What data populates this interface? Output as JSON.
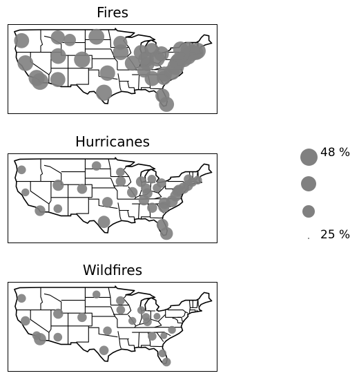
{
  "panels": [
    {
      "title": "Fires",
      "points": [
        {
          "lon": -122.6,
          "lat": 45.6,
          "v": 0.42
        },
        {
          "lon": -112.0,
          "lat": 46.6,
          "v": 0.4
        },
        {
          "lon": -108.5,
          "lat": 45.8,
          "v": 0.36
        },
        {
          "lon": -100.7,
          "lat": 46.8,
          "v": 0.44
        },
        {
          "lon": -111.9,
          "lat": 40.8,
          "v": 0.44
        },
        {
          "lon": -104.9,
          "lat": 39.7,
          "v": 0.45
        },
        {
          "lon": -97.5,
          "lat": 35.5,
          "v": 0.43
        },
        {
          "lon": -121.5,
          "lat": 38.6,
          "v": 0.44
        },
        {
          "lon": -117.2,
          "lat": 32.9,
          "v": 0.47
        },
        {
          "lon": -118.2,
          "lat": 34.0,
          "v": 0.45
        },
        {
          "lon": -112.0,
          "lat": 33.5,
          "v": 0.42
        },
        {
          "lon": -98.5,
          "lat": 29.4,
          "v": 0.45
        },
        {
          "lon": -93.7,
          "lat": 44.9,
          "v": 0.4
        },
        {
          "lon": -93.6,
          "lat": 42.0,
          "v": 0.44
        },
        {
          "lon": -90.2,
          "lat": 38.6,
          "v": 0.42
        },
        {
          "lon": -86.2,
          "lat": 39.8,
          "v": 0.44
        },
        {
          "lon": -87.6,
          "lat": 41.9,
          "v": 0.42
        },
        {
          "lon": -83.0,
          "lat": 40.0,
          "v": 0.44
        },
        {
          "lon": -84.5,
          "lat": 42.7,
          "v": 0.4
        },
        {
          "lon": -81.7,
          "lat": 41.5,
          "v": 0.42
        },
        {
          "lon": -85.8,
          "lat": 38.3,
          "v": 0.4
        },
        {
          "lon": -86.8,
          "lat": 36.2,
          "v": 0.38
        },
        {
          "lon": -84.4,
          "lat": 33.8,
          "v": 0.42
        },
        {
          "lon": -81.0,
          "lat": 34.0,
          "v": 0.4
        },
        {
          "lon": -80.8,
          "lat": 35.2,
          "v": 0.42
        },
        {
          "lon": -78.6,
          "lat": 35.8,
          "v": 0.44
        },
        {
          "lon": -77.5,
          "lat": 37.5,
          "v": 0.46
        },
        {
          "lon": -77.0,
          "lat": 38.9,
          "v": 0.44
        },
        {
          "lon": -76.6,
          "lat": 39.3,
          "v": 0.45
        },
        {
          "lon": -75.2,
          "lat": 39.9,
          "v": 0.46
        },
        {
          "lon": -74.0,
          "lat": 40.7,
          "v": 0.46
        },
        {
          "lon": -73.8,
          "lat": 42.7,
          "v": 0.44
        },
        {
          "lon": -72.7,
          "lat": 41.8,
          "v": 0.45
        },
        {
          "lon": -71.1,
          "lat": 42.4,
          "v": 0.45
        },
        {
          "lon": -76.1,
          "lat": 43.0,
          "v": 0.42
        },
        {
          "lon": -71.4,
          "lat": 41.8,
          "v": 0.4
        },
        {
          "lon": -81.4,
          "lat": 28.5,
          "v": 0.4
        },
        {
          "lon": -80.2,
          "lat": 25.8,
          "v": 0.42
        }
      ]
    },
    {
      "title": "Hurricanes",
      "points": [
        {
          "lon": -122.6,
          "lat": 45.6,
          "v": 0.3
        },
        {
          "lon": -100.7,
          "lat": 46.8,
          "v": 0.31
        },
        {
          "lon": -111.9,
          "lat": 40.8,
          "v": 0.34
        },
        {
          "lon": -104.9,
          "lat": 39.7,
          "v": 0.32
        },
        {
          "lon": -97.5,
          "lat": 35.5,
          "v": 0.33
        },
        {
          "lon": -121.5,
          "lat": 38.6,
          "v": 0.29
        },
        {
          "lon": -117.2,
          "lat": 32.9,
          "v": 0.33
        },
        {
          "lon": -112.0,
          "lat": 33.5,
          "v": 0.3
        },
        {
          "lon": -98.5,
          "lat": 29.4,
          "v": 0.36
        },
        {
          "lon": -93.7,
          "lat": 44.9,
          "v": 0.3
        },
        {
          "lon": -93.6,
          "lat": 42.0,
          "v": 0.32
        },
        {
          "lon": -90.2,
          "lat": 38.6,
          "v": 0.33
        },
        {
          "lon": -87.6,
          "lat": 41.9,
          "v": 0.33
        },
        {
          "lon": -86.2,
          "lat": 39.8,
          "v": 0.32
        },
        {
          "lon": -83.0,
          "lat": 40.0,
          "v": 0.3
        },
        {
          "lon": -84.5,
          "lat": 42.7,
          "v": 0.3
        },
        {
          "lon": -81.7,
          "lat": 41.5,
          "v": 0.31
        },
        {
          "lon": -85.8,
          "lat": 38.3,
          "v": 0.32
        },
        {
          "lon": -86.8,
          "lat": 36.2,
          "v": 0.33
        },
        {
          "lon": -84.4,
          "lat": 33.8,
          "v": 0.32
        },
        {
          "lon": -81.0,
          "lat": 34.0,
          "v": 0.34
        },
        {
          "lon": -80.8,
          "lat": 35.2,
          "v": 0.35
        },
        {
          "lon": -78.6,
          "lat": 35.8,
          "v": 0.35
        },
        {
          "lon": -77.5,
          "lat": 37.5,
          "v": 0.34
        },
        {
          "lon": -77.0,
          "lat": 38.9,
          "v": 0.33
        },
        {
          "lon": -76.6,
          "lat": 39.3,
          "v": 0.33
        },
        {
          "lon": -75.2,
          "lat": 39.9,
          "v": 0.34
        },
        {
          "lon": -74.0,
          "lat": 40.7,
          "v": 0.33
        },
        {
          "lon": -73.8,
          "lat": 42.7,
          "v": 0.31
        },
        {
          "lon": -72.7,
          "lat": 41.8,
          "v": 0.31
        },
        {
          "lon": -71.1,
          "lat": 42.4,
          "v": 0.3
        },
        {
          "lon": -81.4,
          "lat": 28.5,
          "v": 0.35
        },
        {
          "lon": -80.2,
          "lat": 25.8,
          "v": 0.37
        }
      ]
    },
    {
      "title": "Wildfires",
      "points": [
        {
          "lon": -122.6,
          "lat": 45.6,
          "v": 0.3
        },
        {
          "lon": -100.7,
          "lat": 46.8,
          "v": 0.29
        },
        {
          "lon": -111.9,
          "lat": 40.8,
          "v": 0.32
        },
        {
          "lon": -104.9,
          "lat": 39.7,
          "v": 0.31
        },
        {
          "lon": -97.5,
          "lat": 35.5,
          "v": 0.3
        },
        {
          "lon": -121.5,
          "lat": 38.6,
          "v": 0.31
        },
        {
          "lon": -117.2,
          "lat": 32.9,
          "v": 0.36
        },
        {
          "lon": -118.2,
          "lat": 34.0,
          "v": 0.3
        },
        {
          "lon": -112.0,
          "lat": 33.5,
          "v": 0.3
        },
        {
          "lon": -98.5,
          "lat": 29.4,
          "v": 0.31
        },
        {
          "lon": -93.7,
          "lat": 44.9,
          "v": 0.3
        },
        {
          "lon": -93.6,
          "lat": 42.0,
          "v": 0.3
        },
        {
          "lon": -90.2,
          "lat": 38.6,
          "v": 0.29
        },
        {
          "lon": -87.6,
          "lat": 41.9,
          "v": 0.29
        },
        {
          "lon": -86.2,
          "lat": 39.8,
          "v": 0.29
        },
        {
          "lon": -83.0,
          "lat": 40.0,
          "v": 0.28
        },
        {
          "lon": -85.8,
          "lat": 38.3,
          "v": 0.3
        },
        {
          "lon": -84.4,
          "lat": 33.8,
          "v": 0.3
        },
        {
          "lon": -81.0,
          "lat": 34.0,
          "v": 0.28
        },
        {
          "lon": -78.6,
          "lat": 35.8,
          "v": 0.29
        },
        {
          "lon": -81.4,
          "lat": 28.5,
          "v": 0.29
        },
        {
          "lon": -80.2,
          "lat": 25.8,
          "v": 0.3
        }
      ]
    }
  ],
  "legend": {
    "items": [
      {
        "v": 0.48,
        "label": "48 %"
      },
      {
        "v": 0.43,
        "label": ""
      },
      {
        "v": 0.36,
        "label": ""
      },
      {
        "v": 0.25,
        "label": "25 %"
      }
    ]
  },
  "colors": {
    "marker": "#808080",
    "borders": "#000000"
  }
}
